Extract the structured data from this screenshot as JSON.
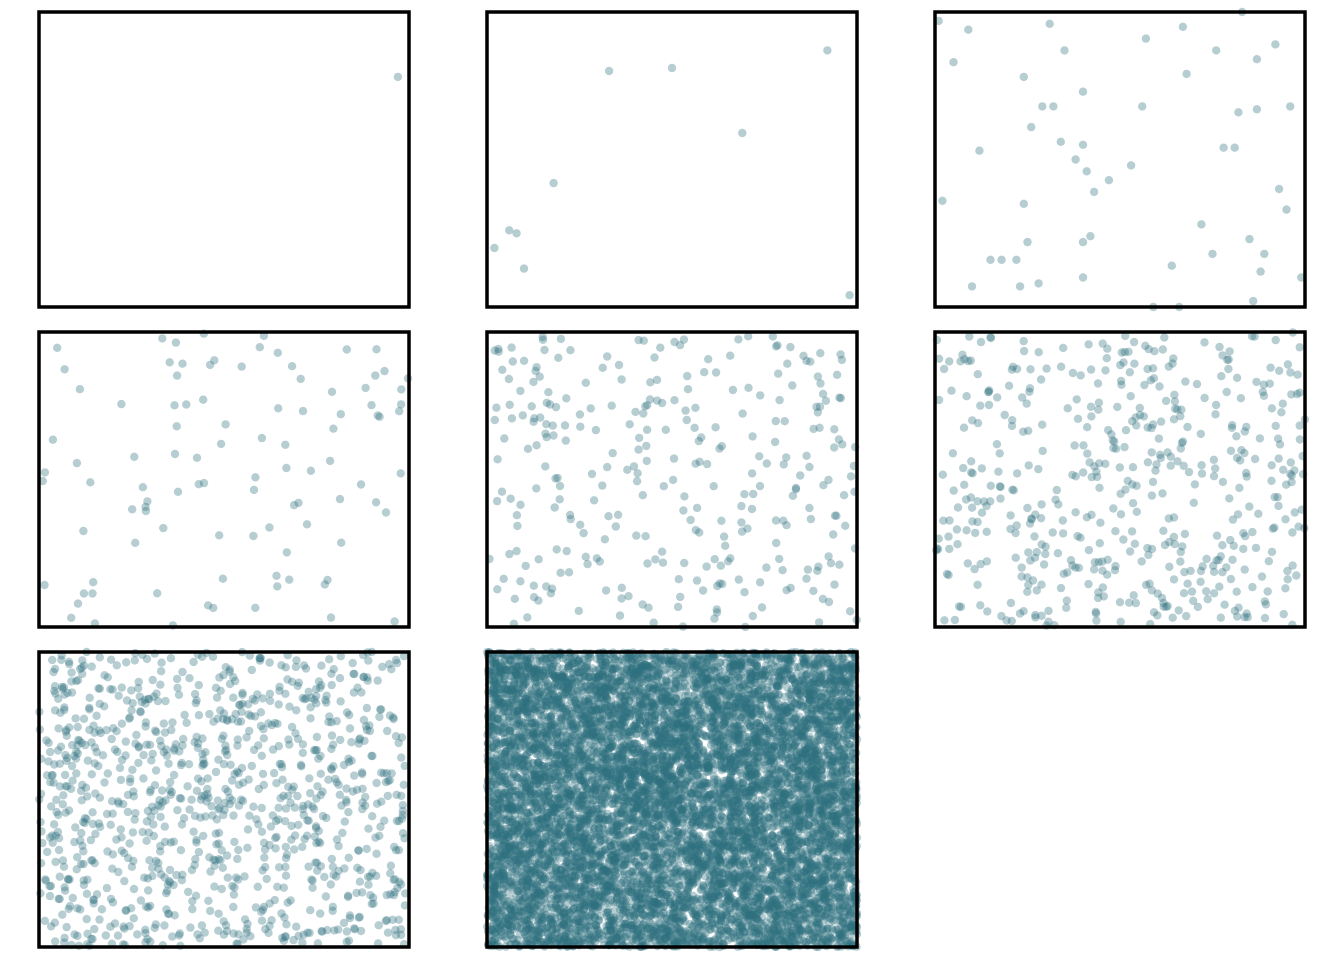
{
  "figure": {
    "point_color": "#2f6f7e",
    "frame_color": "#000000",
    "background": "#ffffff"
  },
  "chart_data": [
    {
      "type": "scatter",
      "title": "",
      "xlabel": "",
      "ylabel": "",
      "xlim": [
        0,
        1
      ],
      "ylim": [
        0,
        1
      ],
      "grid": false,
      "axes_ticks": false,
      "point_count": 1,
      "point_opacity": 0.35,
      "points": [
        [
          0.97,
          0.78
        ]
      ]
    },
    {
      "type": "scatter",
      "title": "",
      "xlabel": "",
      "ylabel": "",
      "xlim": [
        0,
        1
      ],
      "ylim": [
        0,
        1
      ],
      "grid": false,
      "axes_ticks": false,
      "point_count": 10,
      "point_opacity": 0.35,
      "points": [
        [
          0.33,
          0.8
        ],
        [
          0.5,
          0.81
        ],
        [
          0.92,
          0.87
        ],
        [
          0.69,
          0.59
        ],
        [
          0.18,
          0.42
        ],
        [
          0.06,
          0.26
        ],
        [
          0.08,
          0.25
        ],
        [
          0.02,
          0.2
        ],
        [
          0.1,
          0.13
        ],
        [
          0.98,
          0.04
        ]
      ]
    },
    {
      "type": "scatter",
      "title": "",
      "xlabel": "",
      "ylabel": "",
      "xlim": [
        0,
        1
      ],
      "ylim": [
        0,
        1
      ],
      "grid": false,
      "axes_ticks": false,
      "point_count": 55,
      "point_opacity": 0.35,
      "points": [
        [
          0.01,
          0.97
        ],
        [
          0.09,
          0.94
        ],
        [
          0.31,
          0.96
        ],
        [
          0.67,
          0.95
        ],
        [
          0.76,
          0.87
        ],
        [
          0.87,
          0.84
        ],
        [
          0.92,
          0.89
        ],
        [
          0.24,
          0.78
        ],
        [
          0.29,
          0.68
        ],
        [
          0.32,
          0.68
        ],
        [
          0.4,
          0.73
        ],
        [
          0.56,
          0.68
        ],
        [
          0.82,
          0.66
        ],
        [
          0.87,
          0.67
        ],
        [
          0.96,
          0.68
        ],
        [
          0.26,
          0.61
        ],
        [
          0.4,
          0.55
        ],
        [
          0.12,
          0.53
        ],
        [
          0.78,
          0.54
        ],
        [
          0.81,
          0.54
        ],
        [
          0.38,
          0.5
        ],
        [
          0.41,
          0.46
        ],
        [
          0.47,
          0.43
        ],
        [
          0.43,
          0.39
        ],
        [
          0.24,
          0.35
        ],
        [
          0.02,
          0.36
        ],
        [
          0.42,
          0.24
        ],
        [
          0.4,
          0.22
        ],
        [
          0.25,
          0.22
        ],
        [
          0.22,
          0.16
        ],
        [
          0.18,
          0.16
        ],
        [
          0.15,
          0.16
        ],
        [
          0.1,
          0.07
        ],
        [
          0.23,
          0.07
        ],
        [
          0.28,
          0.08
        ],
        [
          0.4,
          0.1
        ],
        [
          0.64,
          0.14
        ],
        [
          0.75,
          0.18
        ],
        [
          0.85,
          0.23
        ],
        [
          0.89,
          0.18
        ],
        [
          0.88,
          0.12
        ],
        [
          0.99,
          0.1
        ],
        [
          0.59,
          0.0
        ],
        [
          0.66,
          0.0
        ],
        [
          0.86,
          0.02
        ],
        [
          0.95,
          0.33
        ],
        [
          0.68,
          0.79
        ],
        [
          0.83,
          1.0
        ],
        [
          0.53,
          0.48
        ],
        [
          0.34,
          0.56
        ],
        [
          0.57,
          0.91
        ],
        [
          0.35,
          0.87
        ],
        [
          0.72,
          0.28
        ],
        [
          0.05,
          0.83
        ],
        [
          0.93,
          0.4
        ]
      ]
    },
    {
      "type": "scatter",
      "title": "",
      "xlabel": "",
      "ylabel": "",
      "xlim": [
        0,
        1
      ],
      "ylim": [
        0,
        1
      ],
      "grid": false,
      "axes_ticks": false,
      "point_count": 100,
      "point_opacity": 0.35,
      "seed": 404
    },
    {
      "type": "scatter",
      "title": "",
      "xlabel": "",
      "ylabel": "",
      "xlim": [
        0,
        1
      ],
      "ylim": [
        0,
        1
      ],
      "grid": false,
      "axes_ticks": false,
      "point_count": 300,
      "point_opacity": 0.35,
      "seed": 505
    },
    {
      "type": "scatter",
      "title": "",
      "xlabel": "",
      "ylabel": "",
      "xlim": [
        0,
        1
      ],
      "ylim": [
        0,
        1
      ],
      "grid": false,
      "axes_ticks": false,
      "point_count": 500,
      "point_opacity": 0.35,
      "seed": 606
    },
    {
      "type": "scatter",
      "title": "",
      "xlabel": "",
      "ylabel": "",
      "xlim": [
        0,
        1
      ],
      "ylim": [
        0,
        1
      ],
      "grid": false,
      "axes_ticks": false,
      "point_count": 1000,
      "point_opacity": 0.35,
      "seed": 707
    },
    {
      "type": "scatter",
      "title": "",
      "xlabel": "",
      "ylabel": "",
      "xlim": [
        0,
        1
      ],
      "ylim": [
        0,
        1
      ],
      "grid": false,
      "axes_ticks": false,
      "point_count": 10000,
      "point_opacity": 0.35,
      "seed": 808
    }
  ]
}
